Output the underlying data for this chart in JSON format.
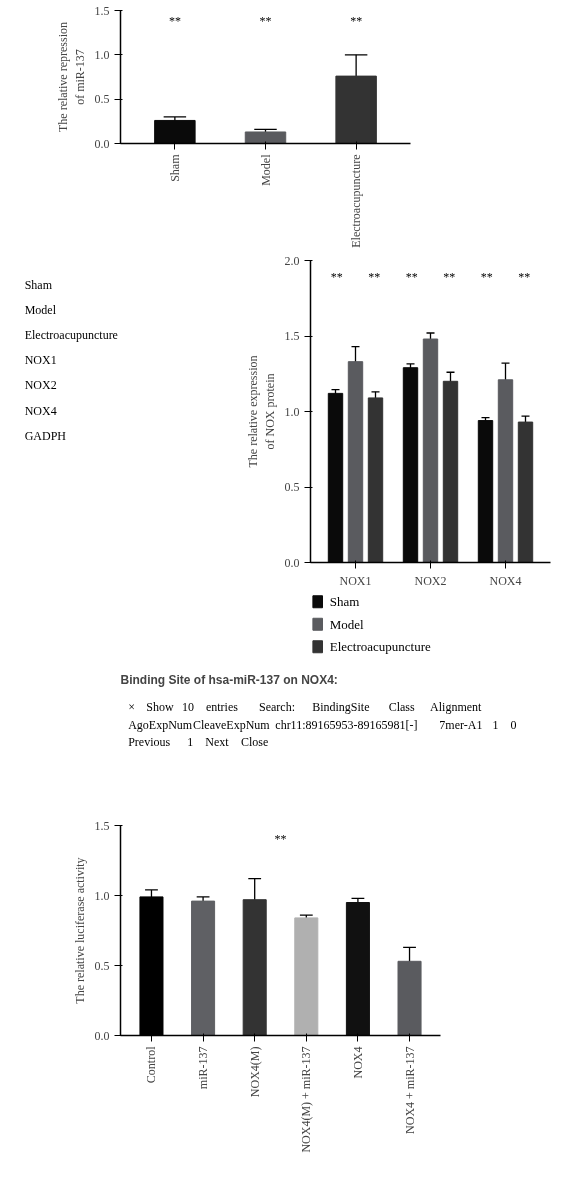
{
  "chart_data": [
    {
      "type": "bar",
      "ylabel": "The relative repression\nof miR-137",
      "categories": [
        "Sham",
        "Model",
        "Electroacupuncture"
      ],
      "series": [
        {
          "values": [
            0.26,
            0.13,
            0.76
          ],
          "colors": [
            "#0a0a0a",
            "#5a5b5f",
            "#333333"
          ],
          "errors": [
            0.04,
            0.03,
            0.24
          ]
        }
      ],
      "ylim": [
        0,
        1.5
      ],
      "yticks": [
        {
          "value": 0,
          "label": "0.0"
        },
        {
          "value": 0.5,
          "label": "0.5"
        },
        {
          "value": 1,
          "label": "1.0"
        },
        {
          "value": 1.5,
          "label": "1.5"
        }
      ],
      "grid": false,
      "annotations": [
        "**",
        "**",
        "**"
      ]
    },
    {
      "type": "other",
      "annotations": [
        "Sham",
        "Model",
        "Electroacupuncture",
        "NOX1",
        "NOX2",
        "NOX4",
        "GADPH"
      ]
    },
    {
      "type": "bar",
      "ylabel": "The relative expression\nof NOX protein",
      "categories": [
        "NOX1",
        "NOX2",
        "NOX4"
      ],
      "series": [
        {
          "name": "Sham",
          "color": "#0a0a0a",
          "values": [
            1.12,
            1.29,
            0.94
          ],
          "errors": [
            0.025,
            0.025,
            0.02
          ]
        },
        {
          "name": "Model",
          "color": "#5a5b5f",
          "values": [
            1.33,
            1.48,
            1.21
          ],
          "errors": [
            0.1,
            0.04,
            0.11
          ]
        },
        {
          "name": "Electroacupuncture",
          "color": "#333333",
          "values": [
            1.09,
            1.2,
            0.93
          ],
          "errors": [
            0.04,
            0.06,
            0.04
          ]
        }
      ],
      "ylim": [
        0,
        2
      ],
      "yticks": [
        {
          "value": 0,
          "label": "0.0"
        },
        {
          "value": 0.5,
          "label": "0.5"
        },
        {
          "value": 1,
          "label": "1.0"
        },
        {
          "value": 1.5,
          "label": "1.5"
        },
        {
          "value": 2,
          "label": "2.0"
        }
      ],
      "grid": false,
      "legend": "bottom",
      "annotations": [
        "**",
        "**",
        "**",
        "**",
        "**",
        "**"
      ]
    },
    {
      "type": "other",
      "title": "Binding Site of hsa-miR-137 on NOX4:",
      "annotations": [
        "×",
        "Show",
        "10",
        "entries",
        "Search:",
        "BindingSite",
        "Class",
        "Alignment",
        "AgoExpNum",
        "CleaveExpNum",
        "chr11:89165953-89165981[-]",
        "7mer-A1",
        "1",
        "0",
        "Previous",
        "1",
        "Next",
        "Close"
      ]
    },
    {
      "type": "bar",
      "ylabel": "The relative luciferase activity",
      "categories": [
        "Control",
        "miR-137",
        "NOX4(M)",
        "NOX4(M) + miR-137",
        "NOX4",
        "NOX4 + miR-137"
      ],
      "series": [
        {
          "values": [
            0.99,
            0.96,
            0.97,
            0.84,
            0.95,
            0.53
          ],
          "colors": [
            "#000000",
            "#5f6064",
            "#333333",
            "#b0b0b0",
            "#111111",
            "#5a5b5f"
          ],
          "errors": [
            0.05,
            0.03,
            0.15,
            0.02,
            0.03,
            0.1
          ]
        }
      ],
      "ylim": [
        0,
        1.5
      ],
      "yticks": [
        {
          "value": 0,
          "label": "0.0"
        },
        {
          "value": 0.5,
          "label": "0.5"
        },
        {
          "value": 1,
          "label": "1.0"
        },
        {
          "value": 1.5,
          "label": "1.5"
        }
      ],
      "grid": false,
      "annotations": [
        "**"
      ]
    }
  ]
}
